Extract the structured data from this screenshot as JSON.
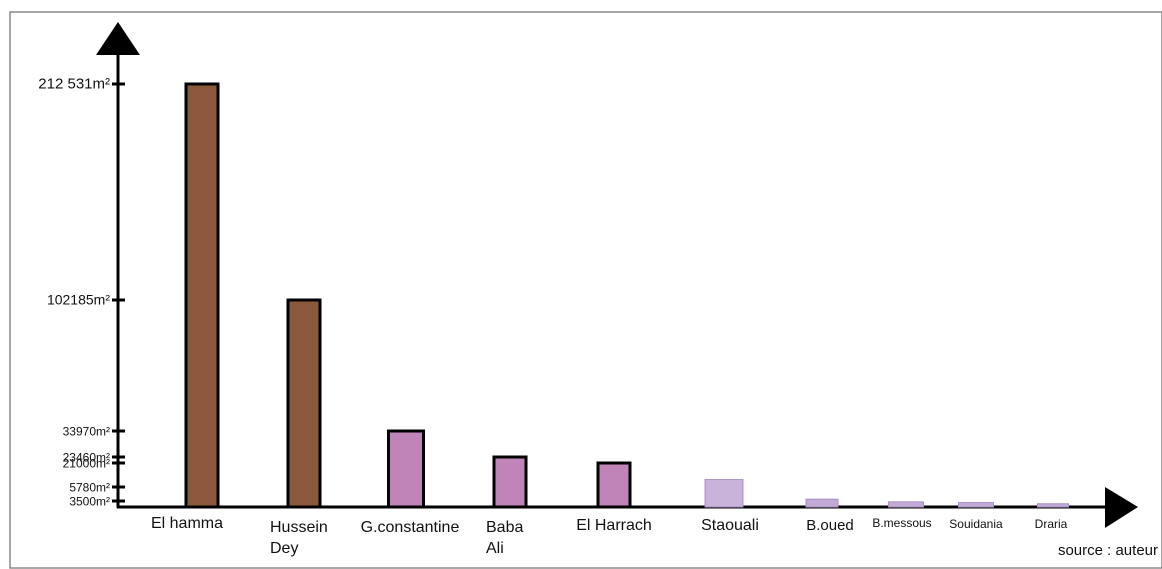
{
  "chart_data": {
    "type": "bar",
    "categories": [
      "El hamma",
      "Hussein Dey",
      "G.constantine",
      "Baba Ali",
      "El Harrach",
      "Staouali",
      "B.oued",
      "B.messous",
      "Souidania",
      "Draria"
    ],
    "category_lines": [
      [
        "El hamma"
      ],
      [
        "Hussein",
        "Dey"
      ],
      [
        "G.constantine"
      ],
      [
        "Baba",
        "Ali"
      ],
      [
        "El Harrach"
      ],
      [
        "Staouali"
      ],
      [
        "B.oued"
      ],
      [
        "B.messous"
      ],
      [
        "Souidania"
      ],
      [
        "Draria"
      ]
    ],
    "values": [
      212531,
      102185,
      33970,
      23460,
      21000,
      10500,
      3800,
      3000,
      2600,
      1900
    ],
    "colors": [
      "#8b5a3c",
      "#8b5a3c",
      "#c084b8",
      "#c084b8",
      "#c084b8",
      "#c9b3db",
      "#c3aad6",
      "#c3aad6",
      "#c3aad6",
      "#c3aad6"
    ],
    "outlined": [
      true,
      true,
      true,
      true,
      true,
      false,
      false,
      false,
      false,
      false
    ],
    "ytick_values": [
      212531,
      102185,
      33970,
      23460,
      21000,
      5780,
      3500
    ],
    "ytick_labels": [
      "212 531m²",
      "102185m²",
      "33970m²",
      "23460m²",
      "21000m²",
      "5780m²",
      "3500m²"
    ],
    "ylim": [
      0,
      212531
    ],
    "grid": false,
    "source_note": "source : auteur"
  }
}
